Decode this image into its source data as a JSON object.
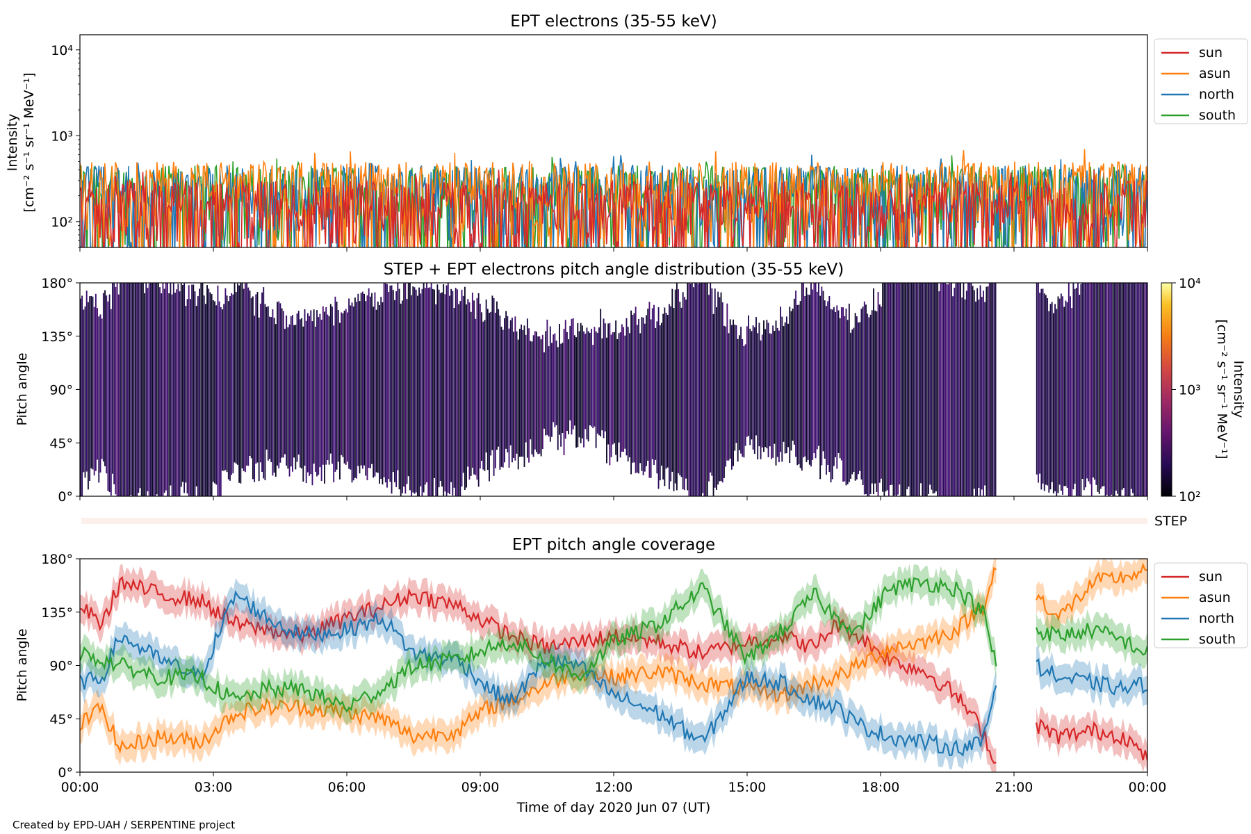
{
  "credit": "Created by EPD-UAH / SERPENTINE project",
  "colors": {
    "sun": "#d62728",
    "asun": "#ff7f0e",
    "north": "#1f77b4",
    "south": "#2ca02c",
    "step_band": "#fdf0ea"
  },
  "chart_data": [
    {
      "type": "line",
      "title": "EPT electrons (35-55 keV)",
      "ylabel_line1": "Intensity",
      "ylabel_line2": "[cm⁻² s⁻¹ sr⁻¹ MeV⁻¹]",
      "yscale": "log",
      "ylim": [
        50,
        15000
      ],
      "yticks": [
        {
          "value": 100,
          "label": "10²"
        },
        {
          "value": 1000,
          "label": "10³"
        },
        {
          "value": 10000,
          "label": "10⁴"
        }
      ],
      "xlim_hours": [
        0,
        24
      ],
      "tick_labels_visible": false,
      "legend_position": "outside-right",
      "series": [
        {
          "name": "sun",
          "color_key": "sun",
          "typical_range": [
            50,
            300
          ]
        },
        {
          "name": "asun",
          "color_key": "asun",
          "typical_range": [
            50,
            500
          ]
        },
        {
          "name": "north",
          "color_key": "north",
          "typical_range": [
            50,
            450
          ]
        },
        {
          "name": "south",
          "color_key": "south",
          "typical_range": [
            50,
            450
          ]
        }
      ],
      "note_values": "Noisy spiky time series between ~50 and ~650 at ~1 min cadence over the full day"
    },
    {
      "type": "heatmap",
      "title": "STEP + EPT electrons pitch angle distribution (35-55 keV)",
      "ylabel": "Pitch angle",
      "ylim": [
        0,
        180
      ],
      "yticks": [
        "0°",
        "45°",
        "90°",
        "135°",
        "180°"
      ],
      "xlim_hours": [
        0,
        24
      ],
      "tick_labels_visible": false,
      "colorbar": {
        "label_line1": "Intensity",
        "label_line2": "[cm⁻² s⁻¹ sr⁻¹ MeV⁻¹]",
        "scale": "log",
        "range": [
          100,
          10000
        ],
        "ticks": [
          "10²",
          "10³",
          "10⁴"
        ],
        "colormap": "inferno"
      },
      "data_gap_hours": [
        20.6,
        21.5
      ],
      "step_band_label": "STEP"
    },
    {
      "type": "line",
      "title": "EPT pitch angle coverage",
      "ylabel": "Pitch angle",
      "xlabel": "Time of day 2020 Jun 07 (UT)",
      "ylim": [
        0,
        180
      ],
      "yticks": [
        "0°",
        "45°",
        "90°",
        "135°",
        "180°"
      ],
      "xticks": [
        "00:00",
        "03:00",
        "06:00",
        "09:00",
        "12:00",
        "15:00",
        "18:00",
        "21:00",
        "00:00"
      ],
      "xlim_hours": [
        0,
        24
      ],
      "data_gap_hours": [
        20.6,
        21.5
      ],
      "legend_position": "outside-right",
      "x": [
        0,
        0.5,
        0.9,
        1.8,
        2.7,
        3.5,
        4.2,
        5.0,
        6.0,
        6.8,
        7.5,
        8.5,
        9.2,
        9.7,
        10.5,
        11.2,
        12.0,
        13.0,
        14.0,
        15.0,
        15.8,
        16.5,
        17.0,
        17.5,
        18.2,
        19.0,
        19.7,
        20.3,
        20.6,
        21.5,
        22.0,
        22.8,
        23.5,
        24.0
      ],
      "series": [
        {
          "name": "sun",
          "color_key": "sun",
          "values": [
            140,
            125,
            160,
            150,
            145,
            125,
            120,
            115,
            130,
            140,
            150,
            140,
            125,
            115,
            105,
            110,
            115,
            110,
            100,
            110,
            115,
            105,
            125,
            115,
            95,
            85,
            65,
            35,
            5,
            40,
            30,
            35,
            30,
            10
          ]
        },
        {
          "name": "asun",
          "color_key": "asun",
          "values": [
            40,
            55,
            20,
            30,
            25,
            50,
            55,
            55,
            50,
            45,
            30,
            35,
            55,
            60,
            75,
            85,
            80,
            85,
            75,
            70,
            65,
            75,
            80,
            90,
            105,
            110,
            120,
            140,
            175,
            150,
            130,
            160,
            165,
            170
          ]
        },
        {
          "name": "north",
          "color_key": "north",
          "values": [
            75,
            80,
            115,
            95,
            80,
            150,
            130,
            115,
            120,
            130,
            100,
            95,
            70,
            60,
            95,
            90,
            65,
            50,
            25,
            80,
            75,
            60,
            55,
            40,
            30,
            25,
            20,
            25,
            75,
            90,
            80,
            75,
            70,
            75
          ]
        },
        {
          "name": "south",
          "color_key": "south",
          "values": [
            100,
            95,
            90,
            80,
            80,
            60,
            70,
            70,
            55,
            70,
            90,
            95,
            105,
            110,
            95,
            80,
            110,
            125,
            155,
            95,
            120,
            150,
            130,
            120,
            155,
            160,
            155,
            135,
            90,
            120,
            115,
            120,
            110,
            100
          ]
        }
      ]
    }
  ]
}
